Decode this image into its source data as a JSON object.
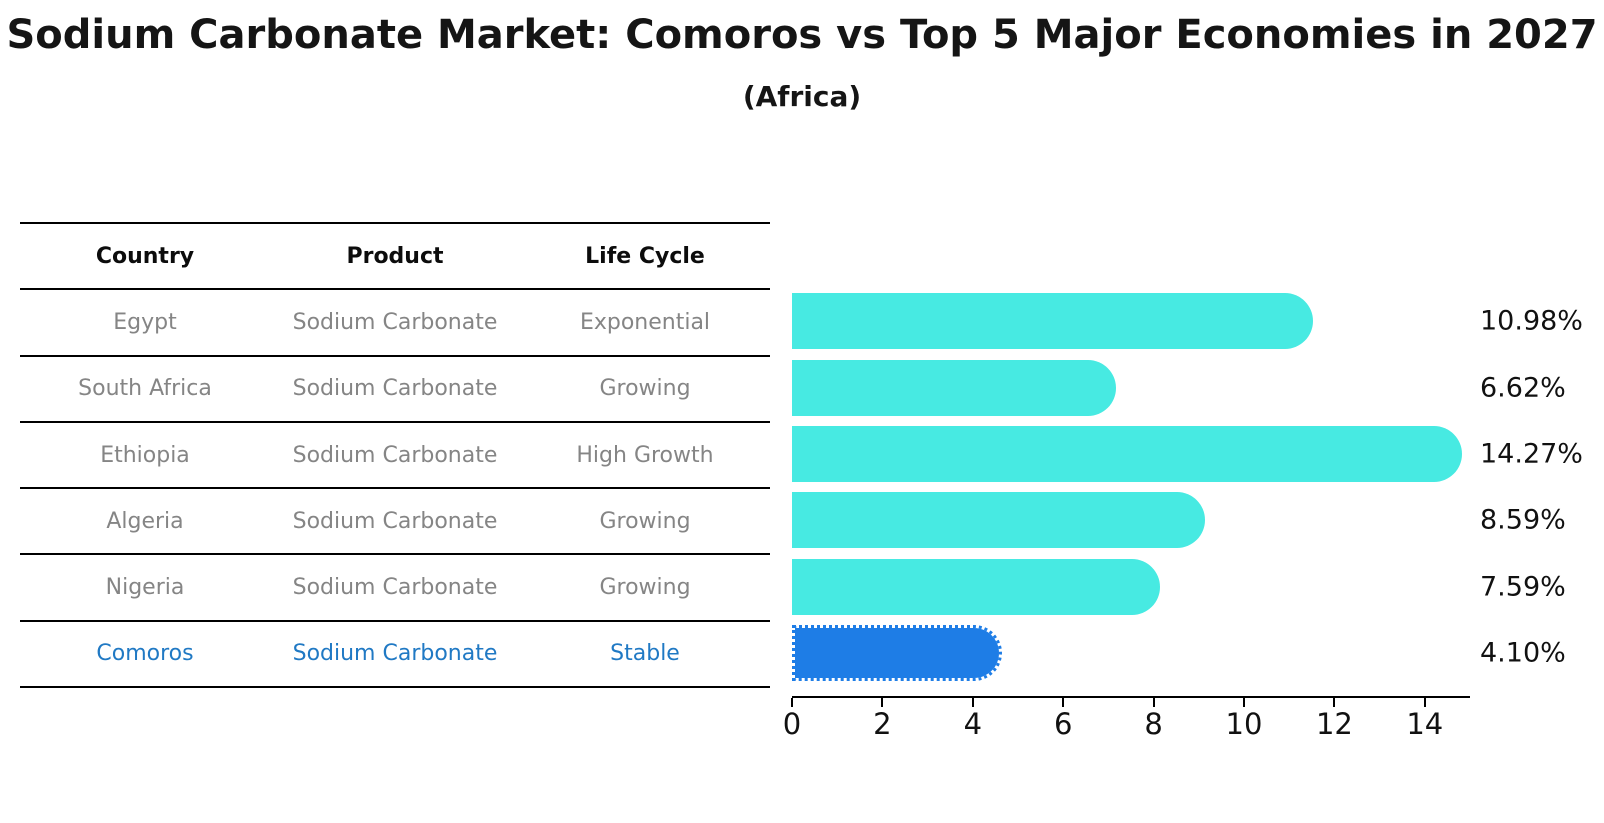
{
  "title": "Sodium Carbonate Market: Comoros vs Top 5 Major Economies in 2027",
  "subtitle": "(Africa)",
  "table": {
    "headers": [
      "Country",
      "Product",
      "Life Cycle"
    ],
    "rows": [
      {
        "country": "Egypt",
        "product": "Sodium Carbonate",
        "life_cycle": "Exponential",
        "highlight": false
      },
      {
        "country": "South Africa",
        "product": "Sodium Carbonate",
        "life_cycle": "Growing",
        "highlight": false
      },
      {
        "country": "Ethiopia",
        "product": "Sodium Carbonate",
        "life_cycle": "High Growth",
        "highlight": false
      },
      {
        "country": "Algeria",
        "product": "Sodium Carbonate",
        "life_cycle": "Growing",
        "highlight": false
      },
      {
        "country": "Nigeria",
        "product": "Sodium Carbonate",
        "life_cycle": "Growing",
        "highlight": false
      },
      {
        "country": "Comoros",
        "product": "Sodium Carbonate",
        "life_cycle": "Stable",
        "highlight": true
      }
    ]
  },
  "chart_data": {
    "type": "bar",
    "orientation": "horizontal",
    "title": "Sodium Carbonate Market: Comoros vs Top 5 Major Economies in 2027",
    "subtitle": "(Africa)",
    "categories": [
      "Egypt",
      "South Africa",
      "Ethiopia",
      "Algeria",
      "Nigeria",
      "Comoros"
    ],
    "values": [
      10.98,
      6.62,
      14.27,
      8.59,
      7.59,
      4.1
    ],
    "value_labels": [
      "10.98%",
      "6.62%",
      "14.27%",
      "8.59%",
      "7.59%",
      "4.10%"
    ],
    "xlabel": "",
    "ylabel": "",
    "xlim": [
      0,
      15
    ],
    "x_ticks": [
      0,
      2,
      4,
      6,
      8,
      10,
      12,
      14
    ],
    "grid": false,
    "legend": false,
    "highlight_index": 5
  },
  "colors": {
    "bar": "#47eae2",
    "highlight_bar": "#1e7de6",
    "highlight_text": "#2079c4",
    "table_text": "#858585",
    "header_text": "#0c0c0c",
    "axis": "#000000"
  }
}
